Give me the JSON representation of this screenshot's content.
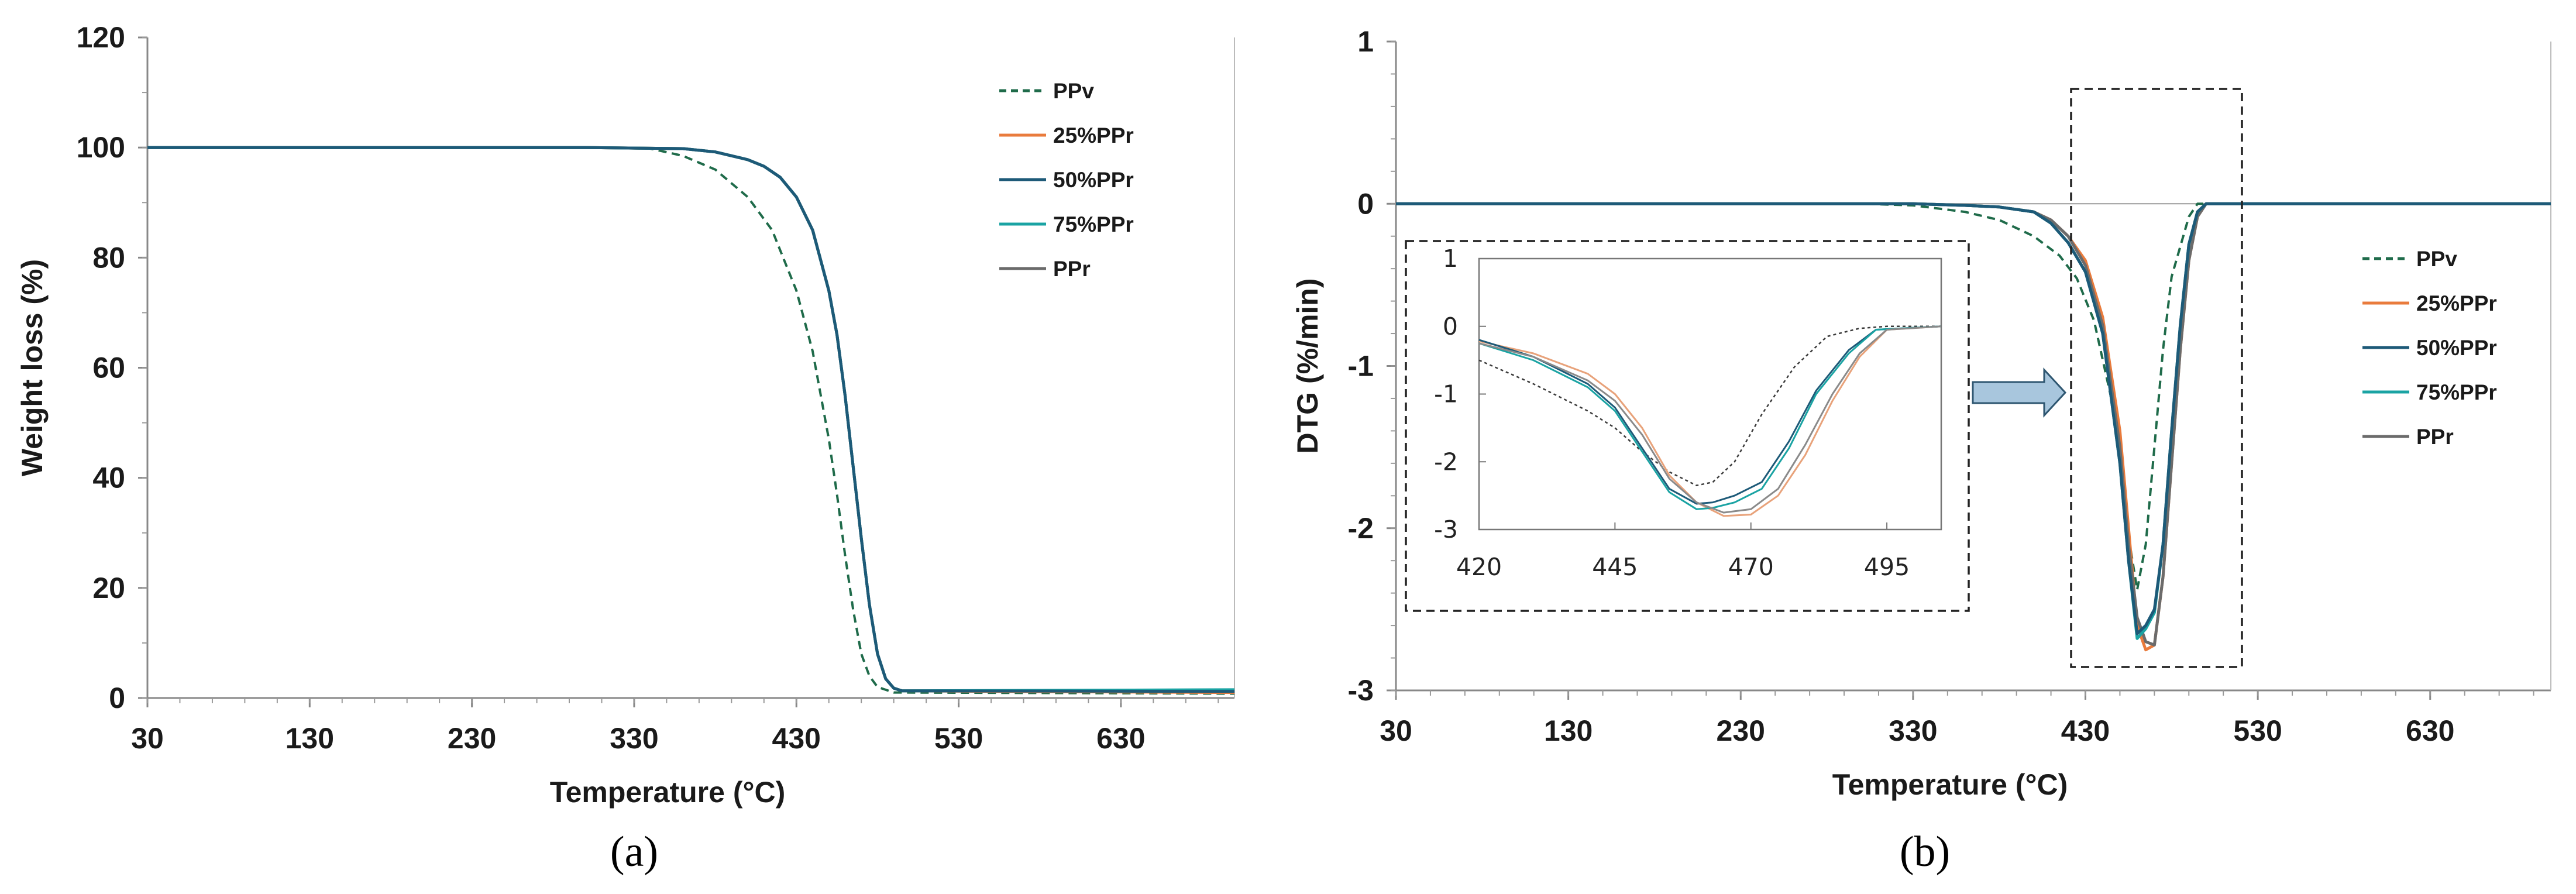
{
  "chart_data": [
    {
      "type": "line",
      "panel": "(a)",
      "xlabel": "Temperature (°C)",
      "ylabel": "Weight loss (%)",
      "xlim": [
        30,
        700
      ],
      "ylim": [
        0,
        120
      ],
      "xticks": [
        30,
        130,
        230,
        330,
        430,
        530,
        630
      ],
      "yticks": [
        0,
        20,
        40,
        60,
        80,
        100,
        120
      ],
      "legend_position": "top-right",
      "series": [
        {
          "name": "PPv",
          "color": "#1f6b4a",
          "dash": true,
          "x": [
            30,
            300,
            340,
            360,
            380,
            400,
            415,
            430,
            440,
            450,
            455,
            460,
            465,
            470,
            475,
            480,
            490,
            700
          ],
          "y": [
            100,
            100,
            99.8,
            98.5,
            96,
            91,
            85,
            74,
            63,
            47,
            37,
            26,
            16,
            8,
            4,
            2,
            1,
            0.8
          ]
        },
        {
          "name": "25%PPr",
          "color": "#e97b3c",
          "dash": false,
          "x": [
            30,
            300,
            360,
            380,
            400,
            410,
            420,
            430,
            440,
            450,
            455,
            460,
            465,
            470,
            475,
            480,
            485,
            490,
            495,
            700
          ],
          "y": [
            100,
            100,
            99.8,
            99.2,
            97.8,
            96.6,
            94.6,
            91,
            85,
            74,
            66,
            55,
            42,
            29,
            17,
            8,
            3.5,
            1.8,
            1.3,
            1.0
          ]
        },
        {
          "name": "50%PPr",
          "color": "#1d5a78",
          "dash": false,
          "x": [
            30,
            300,
            360,
            380,
            400,
            410,
            420,
            430,
            440,
            450,
            455,
            460,
            465,
            470,
            475,
            480,
            485,
            490,
            495,
            700
          ],
          "y": [
            100,
            100,
            99.8,
            99.2,
            97.8,
            96.6,
            94.6,
            91,
            85,
            74,
            66,
            55,
            42,
            29,
            17,
            8,
            3.5,
            1.8,
            1.3,
            1.2
          ]
        },
        {
          "name": "75%PPr",
          "color": "#1aa3a3",
          "dash": false,
          "x": [
            30,
            300,
            360,
            380,
            400,
            410,
            420,
            430,
            440,
            450,
            455,
            460,
            465,
            470,
            475,
            480,
            485,
            490,
            495,
            700
          ],
          "y": [
            100,
            100,
            99.8,
            99.2,
            97.8,
            96.6,
            94.6,
            91,
            85,
            74,
            66,
            55,
            42,
            29,
            17,
            8,
            3.5,
            1.8,
            1.3,
            1.5
          ]
        },
        {
          "name": "PPr",
          "color": "#6b6b6b",
          "dash": false,
          "x": [
            30,
            300,
            360,
            380,
            400,
            410,
            420,
            430,
            440,
            450,
            455,
            460,
            465,
            470,
            475,
            480,
            485,
            490,
            495,
            700
          ],
          "y": [
            100,
            100,
            99.8,
            99.2,
            97.8,
            96.6,
            94.6,
            91,
            85,
            74,
            66,
            55,
            42,
            29,
            17,
            8,
            3.5,
            1.8,
            1.3,
            1.3
          ]
        }
      ]
    },
    {
      "type": "line",
      "panel": "(b)",
      "xlabel": "Temperature (°C)",
      "ylabel": "DTG (%/min)",
      "xlim": [
        30,
        700
      ],
      "ylim": [
        -3,
        1
      ],
      "xticks": [
        30,
        130,
        230,
        330,
        430,
        530,
        630
      ],
      "yticks": [
        -3,
        -2,
        -1,
        0,
        1
      ],
      "legend_position": "right",
      "series": [
        {
          "name": "PPv",
          "color": "#1f6b4a",
          "dash": true,
          "x": [
            30,
            300,
            330,
            360,
            380,
            400,
            415,
            425,
            435,
            445,
            450,
            455,
            460,
            465,
            470,
            475,
            480,
            490,
            495,
            700
          ],
          "y": [
            0,
            0,
            -0.01,
            -0.05,
            -0.1,
            -0.2,
            -0.32,
            -0.46,
            -0.72,
            -1.2,
            -1.6,
            -2.05,
            -2.38,
            -2.1,
            -1.5,
            -0.9,
            -0.45,
            -0.08,
            0,
            0
          ]
        },
        {
          "name": "25%PPr",
          "color": "#e97b3c",
          "dash": false,
          "x": [
            30,
            330,
            360,
            380,
            400,
            410,
            420,
            430,
            440,
            450,
            455,
            460,
            465,
            470,
            475,
            480,
            485,
            490,
            495,
            500,
            700
          ],
          "y": [
            0,
            0,
            -0.01,
            -0.02,
            -0.05,
            -0.1,
            -0.2,
            -0.35,
            -0.7,
            -1.4,
            -2.0,
            -2.6,
            -2.75,
            -2.72,
            -2.3,
            -1.6,
            -0.9,
            -0.35,
            -0.08,
            0,
            0
          ]
        },
        {
          "name": "50%PPr",
          "color": "#1d5a78",
          "dash": false,
          "x": [
            30,
            330,
            360,
            380,
            400,
            410,
            420,
            430,
            440,
            450,
            455,
            460,
            465,
            470,
            475,
            480,
            485,
            490,
            495,
            500,
            700
          ],
          "y": [
            0,
            0,
            -0.01,
            -0.02,
            -0.05,
            -0.12,
            -0.24,
            -0.42,
            -0.8,
            -1.6,
            -2.2,
            -2.65,
            -2.6,
            -2.5,
            -2.1,
            -1.4,
            -0.75,
            -0.25,
            -0.05,
            0,
            0
          ]
        },
        {
          "name": "75%PPr",
          "color": "#1aa3a3",
          "dash": false,
          "x": [
            30,
            330,
            360,
            380,
            400,
            410,
            420,
            430,
            440,
            450,
            455,
            460,
            465,
            470,
            475,
            480,
            485,
            490,
            495,
            500,
            700
          ],
          "y": [
            0,
            0,
            -0.01,
            -0.02,
            -0.05,
            -0.12,
            -0.24,
            -0.42,
            -0.8,
            -1.6,
            -2.2,
            -2.68,
            -2.62,
            -2.52,
            -2.1,
            -1.4,
            -0.75,
            -0.25,
            -0.05,
            0,
            0
          ]
        },
        {
          "name": "PPr",
          "color": "#6b6b6b",
          "dash": false,
          "x": [
            30,
            330,
            360,
            380,
            400,
            410,
            420,
            430,
            440,
            450,
            455,
            460,
            465,
            470,
            475,
            480,
            485,
            490,
            495,
            500,
            700
          ],
          "y": [
            0,
            0,
            -0.01,
            -0.02,
            -0.05,
            -0.1,
            -0.2,
            -0.38,
            -0.75,
            -1.5,
            -2.1,
            -2.55,
            -2.7,
            -2.72,
            -2.3,
            -1.6,
            -0.9,
            -0.35,
            -0.08,
            0,
            0
          ]
        }
      ],
      "inset": {
        "xlim": [
          420,
          505
        ],
        "ylim": [
          -3,
          1
        ],
        "xticks": [
          420,
          445,
          470,
          495
        ],
        "yticks": [
          1,
          0,
          -1,
          -2,
          -3
        ],
        "series": [
          {
            "name": "PPv",
            "color": "#3a3a3a",
            "dash": true,
            "x": [
              420,
              430,
              440,
              445,
              450,
              455,
              460,
              463,
              467,
              472,
              478,
              484,
              490,
              495,
              505
            ],
            "y": [
              -0.5,
              -0.85,
              -1.25,
              -1.5,
              -1.85,
              -2.15,
              -2.35,
              -2.3,
              -2.0,
              -1.3,
              -0.6,
              -0.15,
              -0.03,
              0,
              0
            ]
          },
          {
            "name": "25%PPr",
            "color": "#e8a27a",
            "dash": false,
            "x": [
              420,
              430,
              440,
              445,
              450,
              455,
              460,
              465,
              470,
              475,
              480,
              485,
              490,
              495,
              505
            ],
            "y": [
              -0.22,
              -0.4,
              -0.7,
              -1.0,
              -1.5,
              -2.2,
              -2.6,
              -2.8,
              -2.78,
              -2.5,
              -1.9,
              -1.1,
              -0.45,
              -0.05,
              0
            ]
          },
          {
            "name": "50%PPr",
            "color": "#1d5a78",
            "dash": false,
            "x": [
              420,
              430,
              440,
              445,
              450,
              455,
              460,
              463,
              467,
              472,
              477,
              482,
              488,
              493,
              505
            ],
            "y": [
              -0.2,
              -0.45,
              -0.85,
              -1.2,
              -1.8,
              -2.4,
              -2.62,
              -2.6,
              -2.5,
              -2.3,
              -1.7,
              -0.95,
              -0.35,
              -0.05,
              0
            ]
          },
          {
            "name": "75%PPr",
            "color": "#1aa3a3",
            "dash": false,
            "x": [
              420,
              430,
              440,
              445,
              450,
              455,
              460,
              463,
              467,
              472,
              477,
              482,
              488,
              493,
              505
            ],
            "y": [
              -0.25,
              -0.5,
              -0.9,
              -1.25,
              -1.85,
              -2.45,
              -2.7,
              -2.68,
              -2.6,
              -2.4,
              -1.8,
              -1.0,
              -0.4,
              -0.05,
              0
            ]
          },
          {
            "name": "PPr",
            "color": "#8a8a8a",
            "dash": false,
            "x": [
              420,
              430,
              440,
              445,
              450,
              455,
              460,
              465,
              470,
              475,
              480,
              485,
              490,
              495,
              505
            ],
            "y": [
              -0.25,
              -0.45,
              -0.8,
              -1.1,
              -1.6,
              -2.25,
              -2.6,
              -2.75,
              -2.7,
              -2.4,
              -1.75,
              -1.0,
              -0.4,
              -0.05,
              0
            ]
          }
        ]
      }
    }
  ]
}
